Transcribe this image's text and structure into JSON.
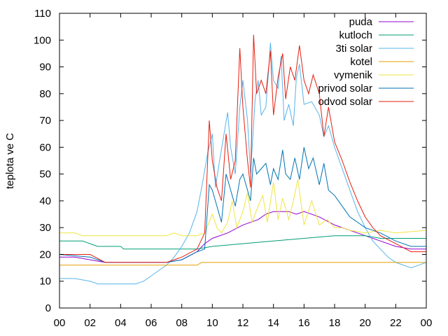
{
  "chart_data": {
    "type": "line",
    "title": "",
    "xlabel": "",
    "ylabel": "teplota ve C",
    "xlim": [
      0,
      24
    ],
    "ylim": [
      0,
      110
    ],
    "x_tick_labels": [
      "00",
      "02",
      "04",
      "06",
      "08",
      "10",
      "12",
      "14",
      "16",
      "18",
      "20",
      "22",
      "00"
    ],
    "y_tick_labels": [
      "0",
      "10",
      "20",
      "30",
      "40",
      "50",
      "60",
      "70",
      "80",
      "90",
      "100",
      "110"
    ],
    "legend_position": "top-right",
    "grid": false,
    "series": [
      {
        "name": "puda",
        "color": "#9400d3",
        "points": [
          [
            0,
            19
          ],
          [
            1,
            19
          ],
          [
            2,
            18
          ],
          [
            3,
            17
          ],
          [
            5,
            17
          ],
          [
            7,
            17
          ],
          [
            8,
            18
          ],
          [
            9,
            21
          ],
          [
            9.5,
            24
          ],
          [
            10,
            26
          ],
          [
            11,
            28
          ],
          [
            12,
            31
          ],
          [
            13,
            33
          ],
          [
            13.5,
            35
          ],
          [
            14,
            36
          ],
          [
            15,
            36
          ],
          [
            15.5,
            35
          ],
          [
            16,
            36
          ],
          [
            17,
            34
          ],
          [
            18,
            31
          ],
          [
            19,
            29
          ],
          [
            20,
            27
          ],
          [
            21,
            25
          ],
          [
            22,
            23
          ],
          [
            23,
            22
          ],
          [
            24,
            22
          ]
        ]
      },
      {
        "name": "kutloch",
        "color": "#009e73",
        "points": [
          [
            0,
            25
          ],
          [
            1.5,
            25
          ],
          [
            2.5,
            23
          ],
          [
            4,
            23
          ],
          [
            4.2,
            22
          ],
          [
            9,
            22
          ],
          [
            10,
            23
          ],
          [
            12,
            24
          ],
          [
            14,
            25
          ],
          [
            16,
            26
          ],
          [
            18,
            27
          ],
          [
            20,
            27
          ],
          [
            21,
            26
          ],
          [
            22,
            26
          ],
          [
            24,
            26
          ]
        ]
      },
      {
        "name": "3ti solar",
        "color": "#56b4e9",
        "points": [
          [
            0,
            11
          ],
          [
            1,
            11
          ],
          [
            2,
            10
          ],
          [
            2.5,
            9
          ],
          [
            5,
            9
          ],
          [
            5.5,
            10
          ],
          [
            6,
            12
          ],
          [
            6.5,
            14
          ],
          [
            7,
            16
          ],
          [
            7.5,
            19
          ],
          [
            8,
            23
          ],
          [
            8.5,
            28
          ],
          [
            9,
            36
          ],
          [
            9.3,
            45
          ],
          [
            9.7,
            58
          ],
          [
            10,
            65
          ],
          [
            10.2,
            45
          ],
          [
            10.5,
            56
          ],
          [
            11,
            73
          ],
          [
            11.2,
            60
          ],
          [
            11.5,
            50
          ],
          [
            11.8,
            75
          ],
          [
            12,
            85
          ],
          [
            12.3,
            70
          ],
          [
            12.5,
            50
          ],
          [
            12.8,
            78
          ],
          [
            13,
            85
          ],
          [
            13.2,
            72
          ],
          [
            13.5,
            75
          ],
          [
            13.7,
            90
          ],
          [
            13.8,
            99
          ],
          [
            14,
            85
          ],
          [
            14.3,
            82
          ],
          [
            14.5,
            94
          ],
          [
            14.7,
            70
          ],
          [
            15,
            76
          ],
          [
            15.3,
            68
          ],
          [
            15.5,
            86
          ],
          [
            15.7,
            91
          ],
          [
            16,
            76
          ],
          [
            16.5,
            77
          ],
          [
            17,
            72
          ],
          [
            17.3,
            64
          ],
          [
            17.6,
            68
          ],
          [
            18,
            60
          ],
          [
            18.5,
            52
          ],
          [
            19,
            44
          ],
          [
            19.5,
            36
          ],
          [
            20,
            30
          ],
          [
            20.5,
            25
          ],
          [
            21,
            22
          ],
          [
            21.5,
            19
          ],
          [
            22,
            17
          ],
          [
            23,
            15
          ],
          [
            23.5,
            16
          ],
          [
            24,
            17
          ]
        ]
      },
      {
        "name": "kotel",
        "color": "#e69f00",
        "points": [
          [
            0,
            16
          ],
          [
            9,
            16
          ],
          [
            9.3,
            17
          ],
          [
            24,
            17
          ]
        ]
      },
      {
        "name": "vymenik",
        "color": "#f0e442",
        "points": [
          [
            0,
            28
          ],
          [
            1,
            28
          ],
          [
            1.5,
            27
          ],
          [
            7,
            27
          ],
          [
            7.5,
            28
          ],
          [
            8,
            27
          ],
          [
            9,
            27
          ],
          [
            9.5,
            28
          ],
          [
            10,
            35
          ],
          [
            10.3,
            30
          ],
          [
            10.6,
            28
          ],
          [
            11,
            32
          ],
          [
            11.3,
            40
          ],
          [
            11.6,
            30
          ],
          [
            12,
            36
          ],
          [
            12.3,
            43
          ],
          [
            12.6,
            32
          ],
          [
            13,
            38
          ],
          [
            13.3,
            42
          ],
          [
            13.6,
            32
          ],
          [
            14,
            47
          ],
          [
            14.3,
            33
          ],
          [
            14.6,
            41
          ],
          [
            15,
            33
          ],
          [
            15.3,
            40
          ],
          [
            15.6,
            48
          ],
          [
            16,
            31
          ],
          [
            16.5,
            40
          ],
          [
            17,
            31
          ],
          [
            17.5,
            33
          ],
          [
            18,
            30
          ],
          [
            18.5,
            30
          ],
          [
            19,
            29
          ],
          [
            20,
            28
          ],
          [
            21,
            29
          ],
          [
            22,
            28
          ],
          [
            24,
            29
          ]
        ]
      },
      {
        "name": "privod solar",
        "color": "#0072b2",
        "points": [
          [
            0,
            20
          ],
          [
            2,
            19
          ],
          [
            3,
            17
          ],
          [
            7,
            17
          ],
          [
            8,
            18
          ],
          [
            9,
            21
          ],
          [
            9.5,
            22
          ],
          [
            9.8,
            46
          ],
          [
            10,
            44
          ],
          [
            10.3,
            38
          ],
          [
            10.6,
            32
          ],
          [
            10.9,
            50
          ],
          [
            11.2,
            44
          ],
          [
            11.5,
            38
          ],
          [
            11.8,
            48
          ],
          [
            12,
            50
          ],
          [
            12.3,
            44
          ],
          [
            12.5,
            40
          ],
          [
            12.7,
            56
          ],
          [
            12.9,
            50
          ],
          [
            13.2,
            52
          ],
          [
            13.5,
            54
          ],
          [
            13.8,
            46
          ],
          [
            14,
            52
          ],
          [
            14.3,
            48
          ],
          [
            14.6,
            59
          ],
          [
            14.8,
            50
          ],
          [
            15.1,
            48
          ],
          [
            15.4,
            56
          ],
          [
            15.7,
            48
          ],
          [
            16,
            60
          ],
          [
            16.3,
            52
          ],
          [
            16.6,
            56
          ],
          [
            17,
            46
          ],
          [
            17.3,
            54
          ],
          [
            17.6,
            44
          ],
          [
            18,
            42
          ],
          [
            18.5,
            38
          ],
          [
            19,
            34
          ],
          [
            19.5,
            32
          ],
          [
            20,
            30
          ],
          [
            21,
            28
          ],
          [
            22,
            25
          ],
          [
            23,
            23
          ],
          [
            24,
            23
          ]
        ]
      },
      {
        "name": "odvod solar",
        "color": "#e51e10",
        "points": [
          [
            0,
            20
          ],
          [
            2,
            20
          ],
          [
            3,
            17
          ],
          [
            7,
            17
          ],
          [
            8,
            19
          ],
          [
            9,
            22
          ],
          [
            9.5,
            28
          ],
          [
            9.8,
            70
          ],
          [
            10,
            55
          ],
          [
            10.3,
            45
          ],
          [
            10.6,
            40
          ],
          [
            10.9,
            65
          ],
          [
            11.2,
            48
          ],
          [
            11.5,
            55
          ],
          [
            11.8,
            97
          ],
          [
            12,
            75
          ],
          [
            12.3,
            55
          ],
          [
            12.5,
            45
          ],
          [
            12.7,
            102
          ],
          [
            12.9,
            80
          ],
          [
            13.2,
            85
          ],
          [
            13.5,
            80
          ],
          [
            13.8,
            96
          ],
          [
            14,
            72
          ],
          [
            14.3,
            86
          ],
          [
            14.6,
            95
          ],
          [
            14.8,
            78
          ],
          [
            15.1,
            90
          ],
          [
            15.4,
            85
          ],
          [
            15.7,
            98
          ],
          [
            16,
            85
          ],
          [
            16.3,
            80
          ],
          [
            16.6,
            87
          ],
          [
            17,
            80
          ],
          [
            17.3,
            64
          ],
          [
            17.6,
            75
          ],
          [
            18,
            62
          ],
          [
            18.5,
            55
          ],
          [
            19,
            47
          ],
          [
            19.5,
            40
          ],
          [
            20,
            34
          ],
          [
            20.5,
            30
          ],
          [
            21,
            27
          ],
          [
            22,
            24
          ],
          [
            23,
            21
          ],
          [
            24,
            21
          ]
        ]
      }
    ]
  }
}
